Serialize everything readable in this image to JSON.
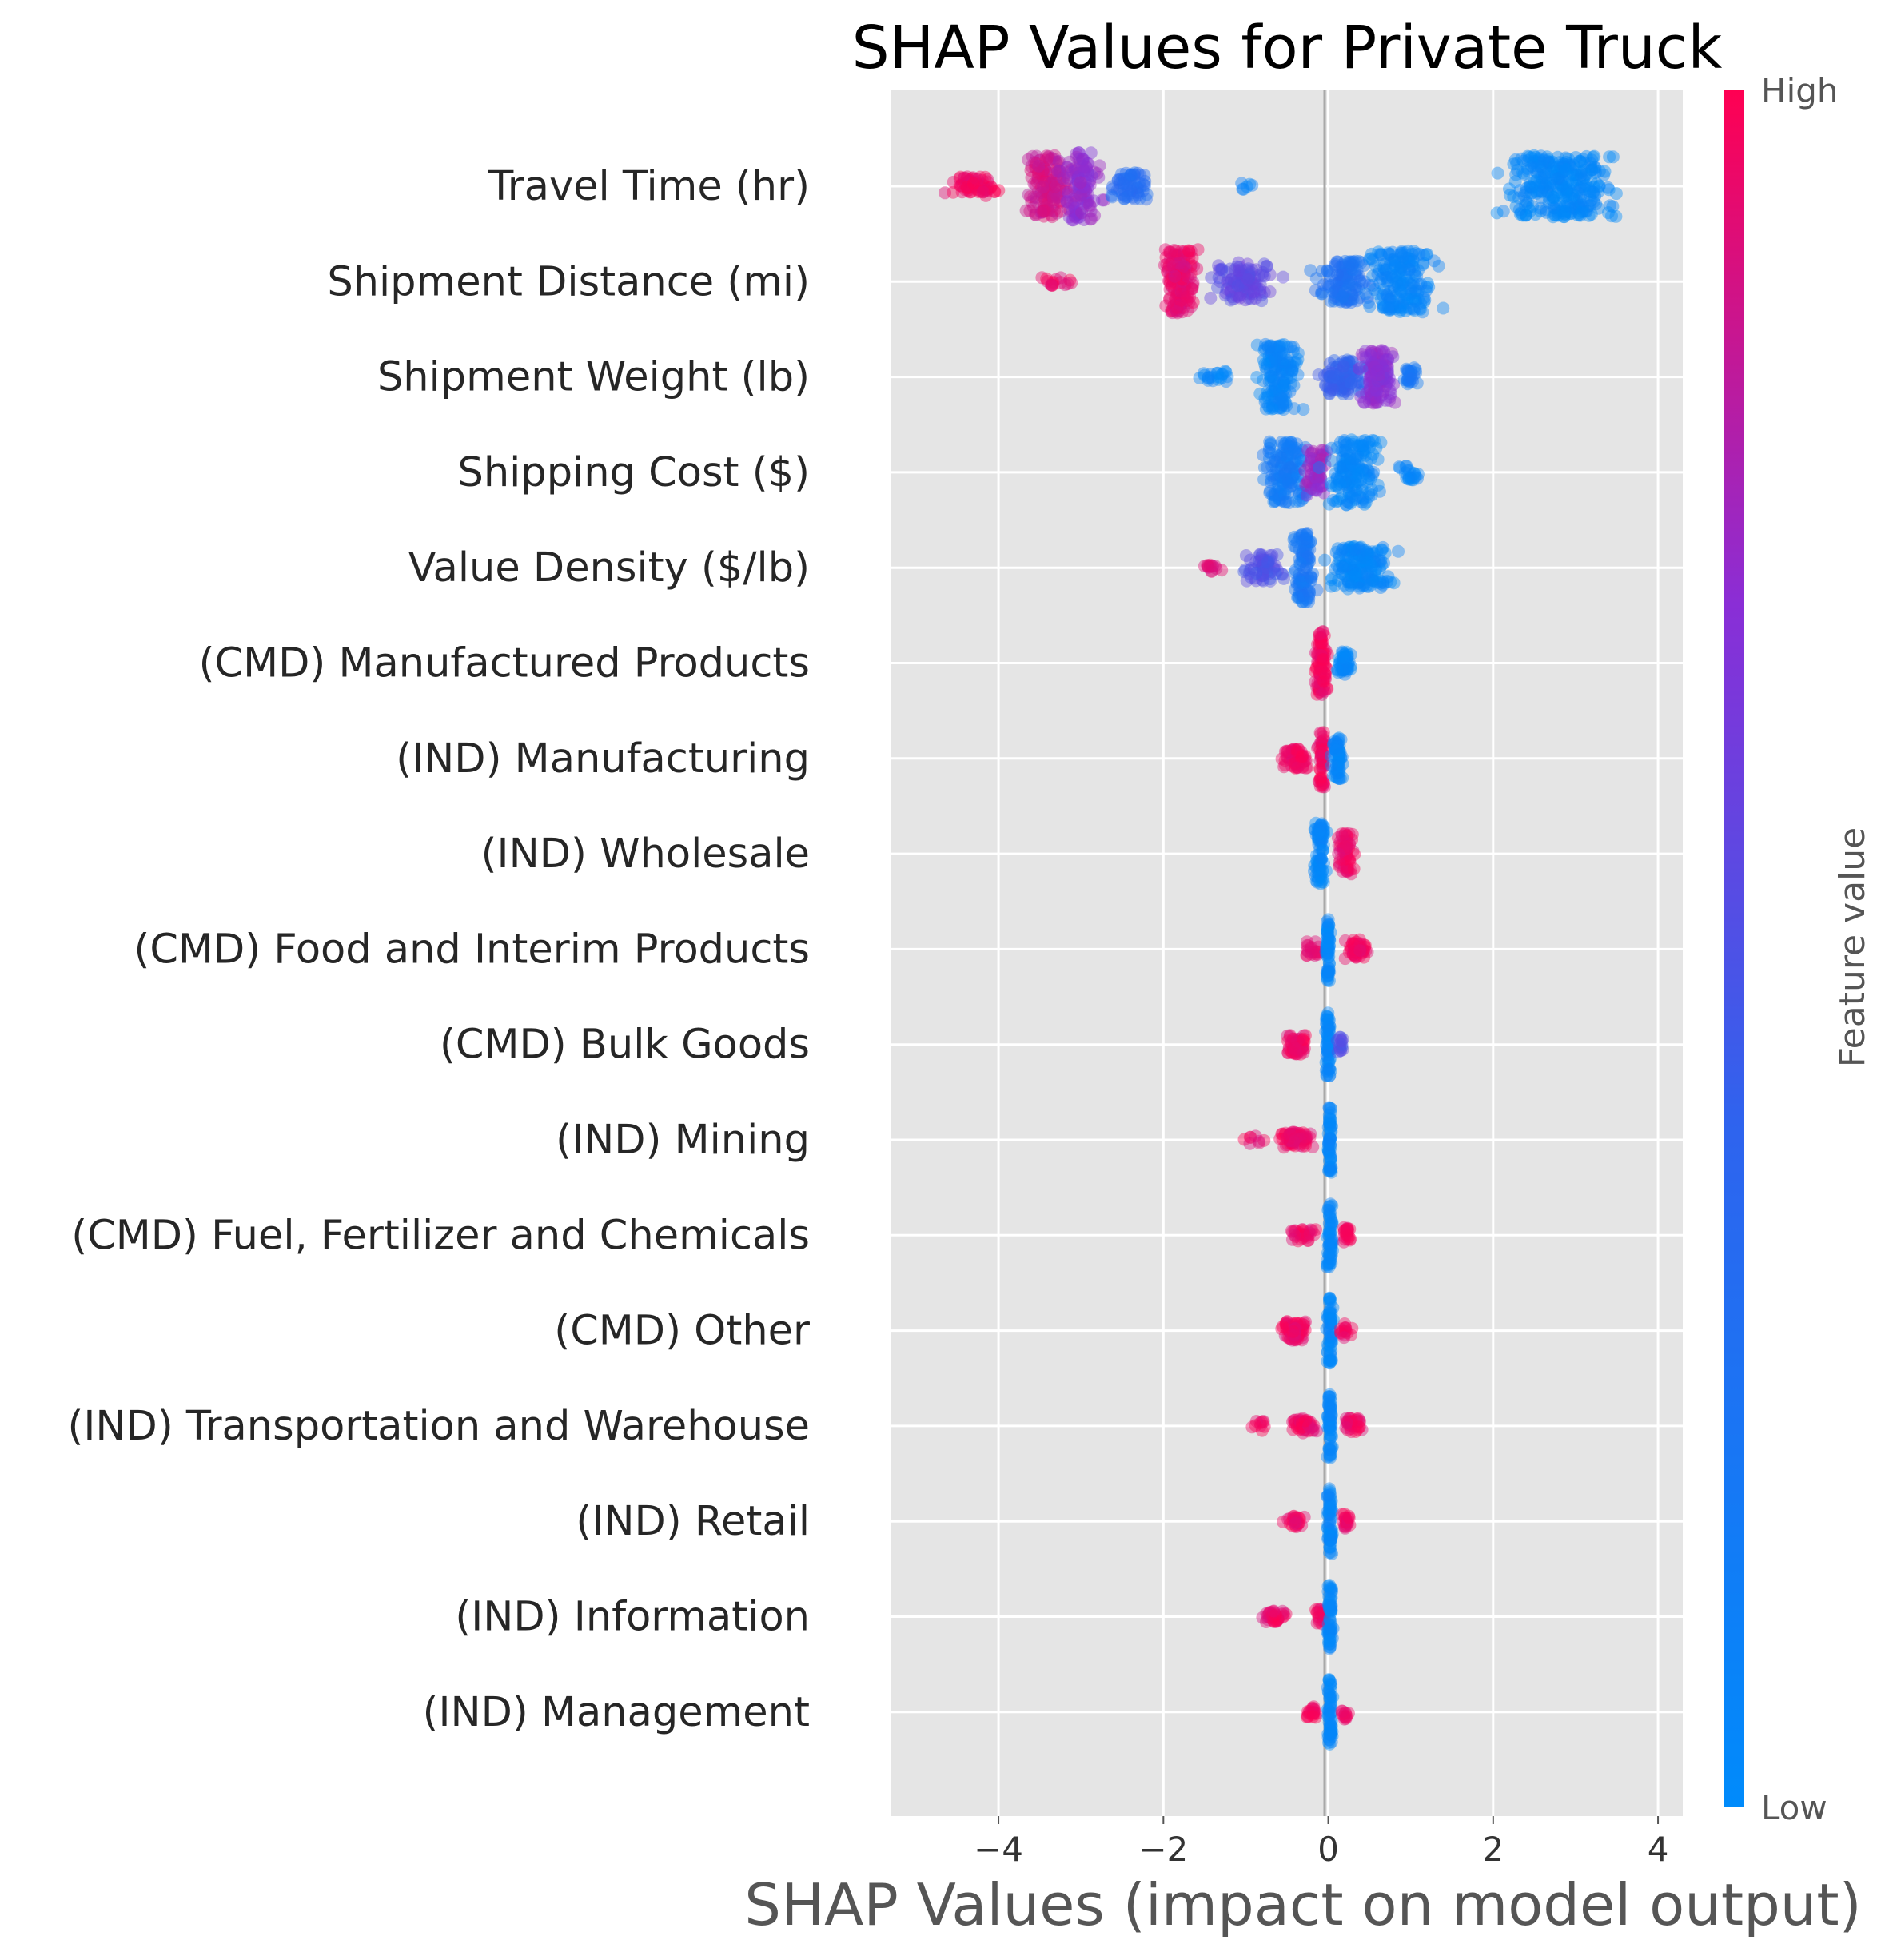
{
  "chart_data": {
    "type": "scatter",
    "subtype": "shap-beeswarm",
    "title": "SHAP Values for Private Truck",
    "xlabel": "SHAP Values (impact on model output)",
    "xlim": [
      -5.3,
      4.3
    ],
    "xticks": [
      -4,
      -2,
      0,
      2,
      4
    ],
    "xtick_labels": [
      "−4",
      "−2",
      "0",
      "2",
      "4"
    ],
    "grid": true,
    "background": "#e5e5e5",
    "colorbar": {
      "title": "Feature value",
      "high_label": "High",
      "low_label": "Low",
      "low_color": "#008bfb",
      "high_color": "#ff0052",
      "placement": "right"
    },
    "features": [
      {
        "name": "Travel Time (hr)",
        "groups": [
          {
            "center": -4.3,
            "spread": 0.5,
            "width": 0.25,
            "n": 70,
            "fv": 0.97
          },
          {
            "center": -3.4,
            "spread": 0.45,
            "width": 0.8,
            "n": 140,
            "fv": 0.88
          },
          {
            "center": -3.0,
            "spread": 0.35,
            "width": 0.9,
            "n": 110,
            "fv": 0.72
          },
          {
            "center": -2.4,
            "spread": 0.35,
            "width": 0.35,
            "n": 60,
            "fv": 0.3
          },
          {
            "center": -1.0,
            "spread": 0.15,
            "width": 0.1,
            "n": 6,
            "fv": 0.06
          },
          {
            "center": 2.8,
            "spread": 1.0,
            "width": 0.8,
            "n": 300,
            "fv": 0.03
          }
        ]
      },
      {
        "name": "Shipment Distance (mi)",
        "groups": [
          {
            "center": -3.3,
            "spread": 0.4,
            "width": 0.12,
            "n": 16,
            "fv": 0.95
          },
          {
            "center": -1.8,
            "spread": 0.3,
            "width": 0.85,
            "n": 150,
            "fv": 0.93
          },
          {
            "center": -1.0,
            "spread": 0.55,
            "width": 0.5,
            "n": 110,
            "fv": 0.55
          },
          {
            "center": 0.2,
            "spread": 0.5,
            "width": 0.55,
            "n": 120,
            "fv": 0.25
          },
          {
            "center": 0.9,
            "spread": 0.6,
            "width": 0.8,
            "n": 180,
            "fv": 0.06
          }
        ]
      },
      {
        "name": "Shipment Weight (lb)",
        "groups": [
          {
            "center": -1.4,
            "spread": 0.3,
            "width": 0.15,
            "n": 20,
            "fv": 0.05
          },
          {
            "center": -0.6,
            "spread": 0.35,
            "width": 0.85,
            "n": 150,
            "fv": 0.06
          },
          {
            "center": 0.2,
            "spread": 0.4,
            "width": 0.45,
            "n": 100,
            "fv": 0.4
          },
          {
            "center": 0.6,
            "spread": 0.3,
            "width": 0.7,
            "n": 130,
            "fv": 0.7
          },
          {
            "center": 1.0,
            "spread": 0.15,
            "width": 0.25,
            "n": 25,
            "fv": 0.2
          }
        ]
      },
      {
        "name": "Shipping Cost ($)",
        "groups": [
          {
            "center": -0.5,
            "spread": 0.4,
            "width": 0.8,
            "n": 140,
            "fv": 0.15
          },
          {
            "center": -0.15,
            "spread": 0.2,
            "width": 0.6,
            "n": 60,
            "fv": 0.75
          },
          {
            "center": 0.3,
            "spread": 0.45,
            "width": 0.85,
            "n": 160,
            "fv": 0.05
          },
          {
            "center": 1.0,
            "spread": 0.2,
            "width": 0.2,
            "n": 20,
            "fv": 0.05
          }
        ]
      },
      {
        "name": "Value Density ($/lb)",
        "groups": [
          {
            "center": -1.4,
            "spread": 0.2,
            "width": 0.1,
            "n": 14,
            "fv": 0.9
          },
          {
            "center": -0.8,
            "spread": 0.35,
            "width": 0.35,
            "n": 60,
            "fv": 0.5
          },
          {
            "center": -0.3,
            "spread": 0.2,
            "width": 0.9,
            "n": 100,
            "fv": 0.2
          },
          {
            "center": 0.4,
            "spread": 0.55,
            "width": 0.55,
            "n": 160,
            "fv": 0.04
          }
        ]
      },
      {
        "name": "(CMD) Manufactured Products",
        "groups": [
          {
            "center": -0.08,
            "spread": 0.12,
            "width": 0.85,
            "n": 90,
            "fv": 0.97
          },
          {
            "center": 0.2,
            "spread": 0.15,
            "width": 0.3,
            "n": 50,
            "fv": 0.04
          }
        ]
      },
      {
        "name": "(IND) Manufacturing",
        "groups": [
          {
            "center": -0.4,
            "spread": 0.25,
            "width": 0.25,
            "n": 60,
            "fv": 0.96
          },
          {
            "center": -0.07,
            "spread": 0.08,
            "width": 0.75,
            "n": 50,
            "fv": 0.97
          },
          {
            "center": 0.12,
            "spread": 0.12,
            "width": 0.55,
            "n": 60,
            "fv": 0.04
          }
        ]
      },
      {
        "name": "(IND) Wholesale",
        "groups": [
          {
            "center": -0.1,
            "spread": 0.12,
            "width": 0.8,
            "n": 80,
            "fv": 0.04
          },
          {
            "center": 0.22,
            "spread": 0.15,
            "width": 0.55,
            "n": 60,
            "fv": 0.96
          }
        ]
      },
      {
        "name": "(CMD) Food and Interim Products",
        "groups": [
          {
            "center": -0.2,
            "spread": 0.15,
            "width": 0.2,
            "n": 20,
            "fv": 0.96
          },
          {
            "center": 0.0,
            "spread": 0.04,
            "width": 0.85,
            "n": 60,
            "fv": 0.04
          },
          {
            "center": 0.35,
            "spread": 0.2,
            "width": 0.25,
            "n": 50,
            "fv": 0.96
          }
        ]
      },
      {
        "name": "(CMD) Bulk Goods",
        "groups": [
          {
            "center": -0.4,
            "spread": 0.22,
            "width": 0.25,
            "n": 60,
            "fv": 0.96
          },
          {
            "center": 0.0,
            "spread": 0.05,
            "width": 0.85,
            "n": 60,
            "fv": 0.04
          },
          {
            "center": 0.15,
            "spread": 0.08,
            "width": 0.2,
            "n": 15,
            "fv": 0.5
          }
        ]
      },
      {
        "name": "(IND) Mining",
        "groups": [
          {
            "center": -0.95,
            "spread": 0.2,
            "width": 0.1,
            "n": 8,
            "fv": 0.96
          },
          {
            "center": -0.4,
            "spread": 0.3,
            "width": 0.2,
            "n": 70,
            "fv": 0.96
          },
          {
            "center": 0.02,
            "spread": 0.04,
            "width": 0.85,
            "n": 60,
            "fv": 0.04
          }
        ]
      },
      {
        "name": "(CMD) Fuel, Fertilizer and Chemicals",
        "groups": [
          {
            "center": -0.3,
            "spread": 0.25,
            "width": 0.15,
            "n": 30,
            "fv": 0.96
          },
          {
            "center": 0.02,
            "spread": 0.06,
            "width": 0.85,
            "n": 60,
            "fv": 0.04
          },
          {
            "center": 0.22,
            "spread": 0.12,
            "width": 0.2,
            "n": 20,
            "fv": 0.96
          }
        ]
      },
      {
        "name": "(CMD) Other",
        "groups": [
          {
            "center": -0.4,
            "spread": 0.25,
            "width": 0.25,
            "n": 60,
            "fv": 0.96
          },
          {
            "center": 0.02,
            "spread": 0.05,
            "width": 0.85,
            "n": 60,
            "fv": 0.04
          },
          {
            "center": 0.2,
            "spread": 0.12,
            "width": 0.2,
            "n": 15,
            "fv": 0.96
          }
        ]
      },
      {
        "name": "(IND) Transportation and Warehouse",
        "groups": [
          {
            "center": -0.85,
            "spread": 0.15,
            "width": 0.15,
            "n": 10,
            "fv": 0.96
          },
          {
            "center": -0.3,
            "spread": 0.25,
            "width": 0.2,
            "n": 40,
            "fv": 0.96
          },
          {
            "center": 0.02,
            "spread": 0.05,
            "width": 0.85,
            "n": 60,
            "fv": 0.04
          },
          {
            "center": 0.3,
            "spread": 0.18,
            "width": 0.2,
            "n": 30,
            "fv": 0.96
          }
        ]
      },
      {
        "name": "(IND) Retail",
        "groups": [
          {
            "center": -0.4,
            "spread": 0.2,
            "width": 0.15,
            "n": 25,
            "fv": 0.96
          },
          {
            "center": 0.02,
            "spread": 0.05,
            "width": 0.85,
            "n": 60,
            "fv": 0.04
          },
          {
            "center": 0.22,
            "spread": 0.1,
            "width": 0.2,
            "n": 20,
            "fv": 0.96
          }
        ]
      },
      {
        "name": "(IND) Information",
        "groups": [
          {
            "center": -0.65,
            "spread": 0.25,
            "width": 0.15,
            "n": 35,
            "fv": 0.96
          },
          {
            "center": -0.1,
            "spread": 0.1,
            "width": 0.2,
            "n": 20,
            "fv": 0.96
          },
          {
            "center": 0.02,
            "spread": 0.05,
            "width": 0.85,
            "n": 60,
            "fv": 0.04
          }
        ]
      },
      {
        "name": "(IND) Management",
        "groups": [
          {
            "center": -0.2,
            "spread": 0.12,
            "width": 0.15,
            "n": 20,
            "fv": 0.96
          },
          {
            "center": 0.02,
            "spread": 0.04,
            "width": 0.85,
            "n": 60,
            "fv": 0.04
          },
          {
            "center": 0.2,
            "spread": 0.08,
            "width": 0.2,
            "n": 12,
            "fv": 0.96
          }
        ]
      }
    ]
  }
}
